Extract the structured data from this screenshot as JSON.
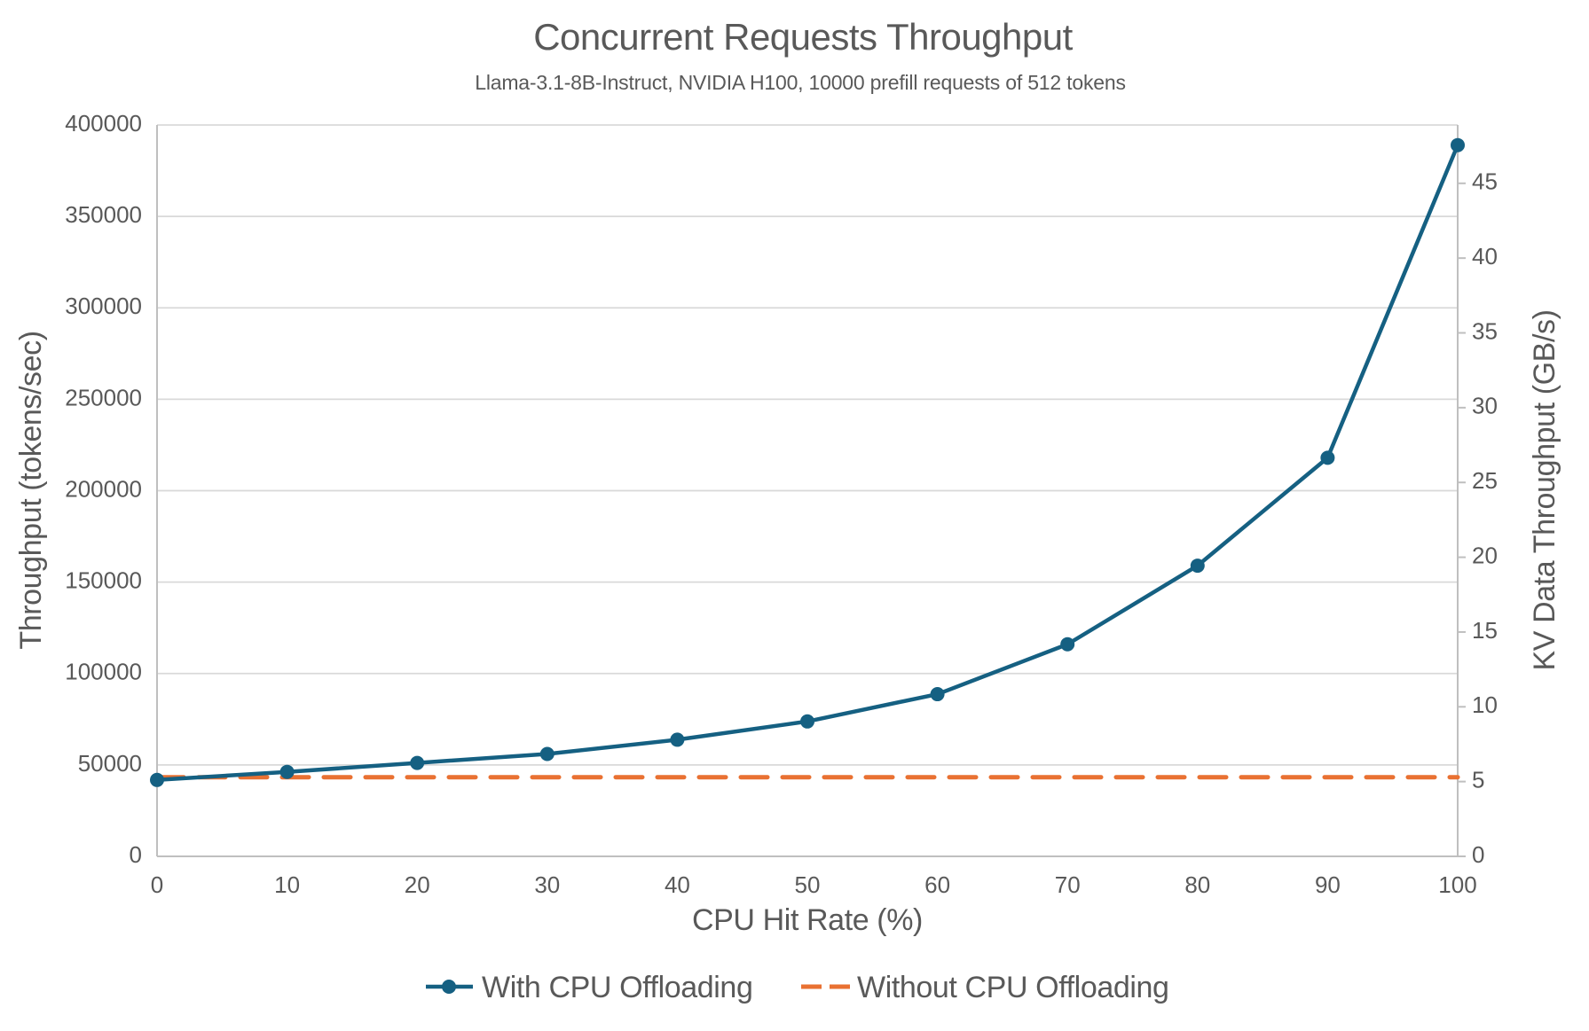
{
  "chart_data": {
    "type": "line",
    "title": "Concurrent Requests Throughput",
    "subtitle": "Llama-3.1-8B-Instruct, NVIDIA H100, 10000 prefill requests of 512 tokens",
    "xlabel": "CPU Hit Rate (%)",
    "ylabel_left": "Throughput (tokens/sec)",
    "ylabel_right": "KV Data Throughput (GB/s)",
    "x": [
      0,
      10,
      20,
      30,
      40,
      50,
      60,
      70,
      80,
      90,
      100
    ],
    "xlim": [
      0,
      100
    ],
    "ylim_left": [
      0,
      400000
    ],
    "ylim_right": [
      0,
      48.9
    ],
    "xticks": [
      0,
      10,
      20,
      30,
      40,
      50,
      60,
      70,
      80,
      90,
      100
    ],
    "yticks_left": [
      0,
      50000,
      100000,
      150000,
      200000,
      250000,
      300000,
      350000,
      400000
    ],
    "yticks_right": [
      0,
      5,
      10,
      15,
      20,
      25,
      30,
      35,
      40,
      45
    ],
    "grid": "horizontal",
    "legend_position": "bottom-center",
    "series": [
      {
        "name": "With CPU Offloading",
        "color": "#156082",
        "style": "solid",
        "marker": "circle",
        "axis": "left",
        "values": [
          41800,
          46200,
          51100,
          56000,
          63800,
          73800,
          88700,
          116000,
          159000,
          218000,
          389000
        ]
      },
      {
        "name": "Without CPU Offloading",
        "color": "#E97132",
        "style": "dashed",
        "marker": "none",
        "axis": "left",
        "values": [
          43300,
          43300,
          43300,
          43300,
          43300,
          43300,
          43300,
          43300,
          43300,
          43300,
          43300
        ]
      }
    ],
    "colors": {
      "text": "#595959",
      "gridline": "#D9D9D9",
      "axis_line": "#BFBFBF",
      "background": "#FFFFFF"
    }
  }
}
